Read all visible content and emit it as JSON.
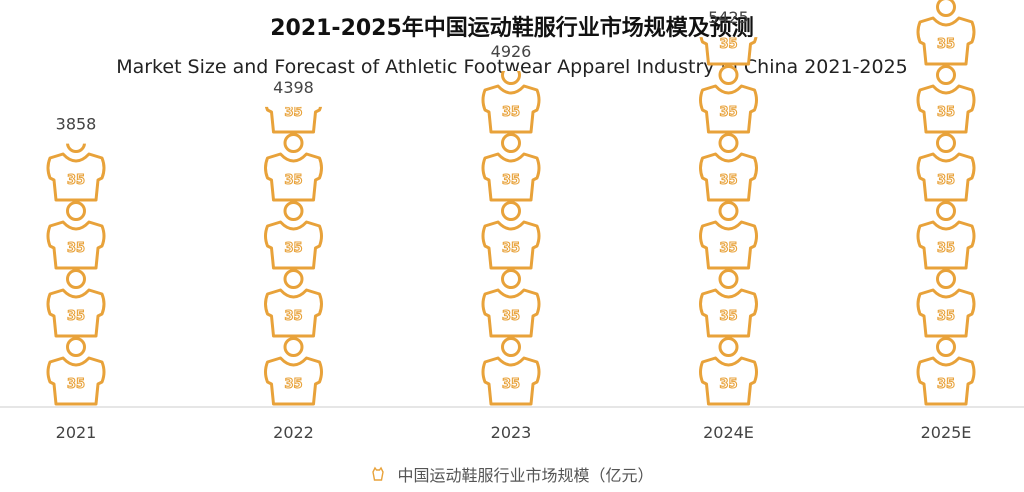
{
  "chart_data": {
    "type": "bar",
    "title": "2021-2025年中国运动鞋服行业市场规模及预测",
    "subtitle": "Market Size and Forecast of Athletic Footwear Apparel Industry in China 2021-2025",
    "categories": [
      "2021",
      "2022",
      "2023",
      "2024E",
      "2025E"
    ],
    "series": [
      {
        "name": "中国运动鞋服行业市场规模（亿元）",
        "values": [
          3858,
          4398,
          4926,
          5425,
          5989
        ]
      }
    ],
    "icon_label": "35",
    "unit_value": 1000,
    "ylim": [
      0,
      6000
    ],
    "grid": false,
    "legend_position": "bottom",
    "colors": {
      "icon": "#E8A23A",
      "axis": "#cccccc",
      "text": "#444444"
    }
  }
}
